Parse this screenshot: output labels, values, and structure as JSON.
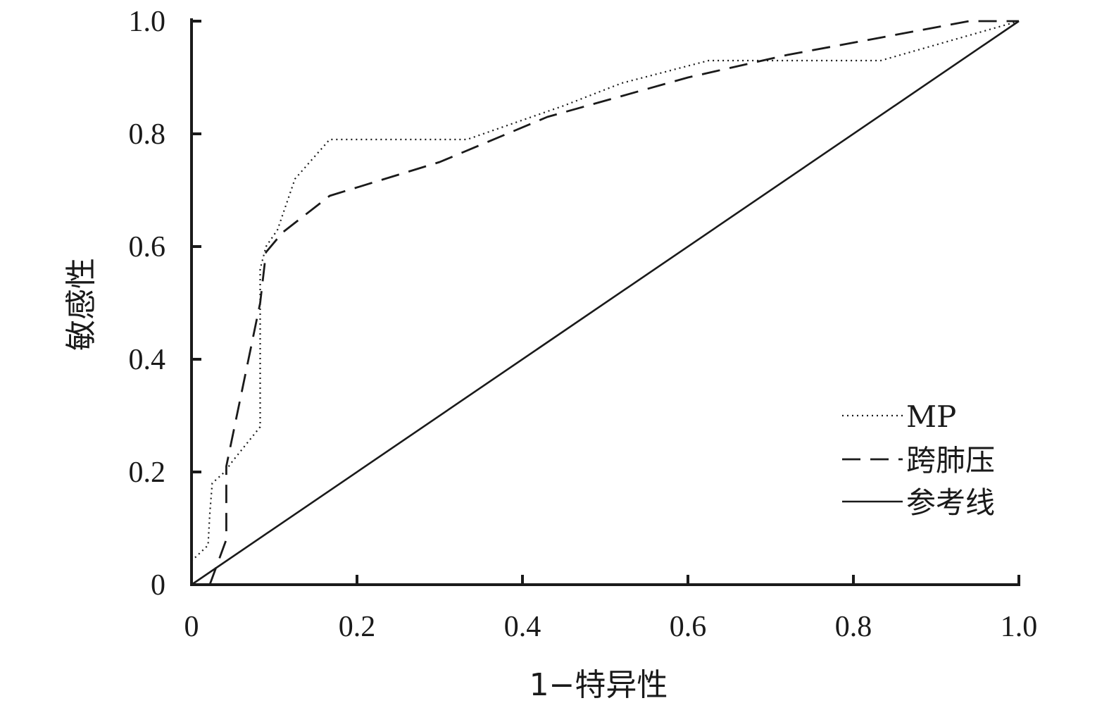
{
  "chart_data": {
    "type": "line",
    "xlabel": "1−特异性",
    "ylabel": "敏感性",
    "xlim": [
      0,
      1
    ],
    "ylim": [
      0,
      1
    ],
    "x_ticks": [
      0,
      0.2,
      0.4,
      0.6,
      0.8,
      1.0
    ],
    "x_tick_labels": [
      "0",
      "0.2",
      "0.4",
      "0.6",
      "0.8",
      "1.0"
    ],
    "y_ticks": [
      0,
      0.2,
      0.4,
      0.6,
      0.8,
      1.0
    ],
    "y_tick_labels": [
      "0",
      "0.2",
      "0.4",
      "0.6",
      "0.8",
      "1.0"
    ],
    "grid": false,
    "legend_position": "bottom-right",
    "series": [
      {
        "name": "MP",
        "style": "dotted",
        "x": [
          0.0,
          0.02,
          0.022,
          0.025,
          0.04,
          0.05,
          0.083,
          0.083,
          0.09,
          0.104,
          0.125,
          0.167,
          0.333,
          0.45,
          0.52,
          0.625,
          0.71,
          0.833,
          1.0
        ],
        "y": [
          0.042,
          0.07,
          0.125,
          0.18,
          0.2,
          0.22,
          0.28,
          0.56,
          0.6,
          0.63,
          0.72,
          0.79,
          0.79,
          0.85,
          0.89,
          0.93,
          0.93,
          0.93,
          1.0
        ]
      },
      {
        "name": "跨肺压",
        "style": "dashed",
        "x": [
          0.022,
          0.042,
          0.042,
          0.083,
          0.09,
          0.11,
          0.167,
          0.3,
          0.43,
          0.6,
          0.72,
          0.94,
          1.0
        ],
        "y": [
          0.0,
          0.08,
          0.21,
          0.5,
          0.59,
          0.625,
          0.69,
          0.75,
          0.83,
          0.9,
          0.94,
          1.0,
          1.0
        ]
      },
      {
        "name": "参考线",
        "style": "solid",
        "x": [
          0,
          1
        ],
        "y": [
          0,
          1
        ]
      }
    ]
  }
}
